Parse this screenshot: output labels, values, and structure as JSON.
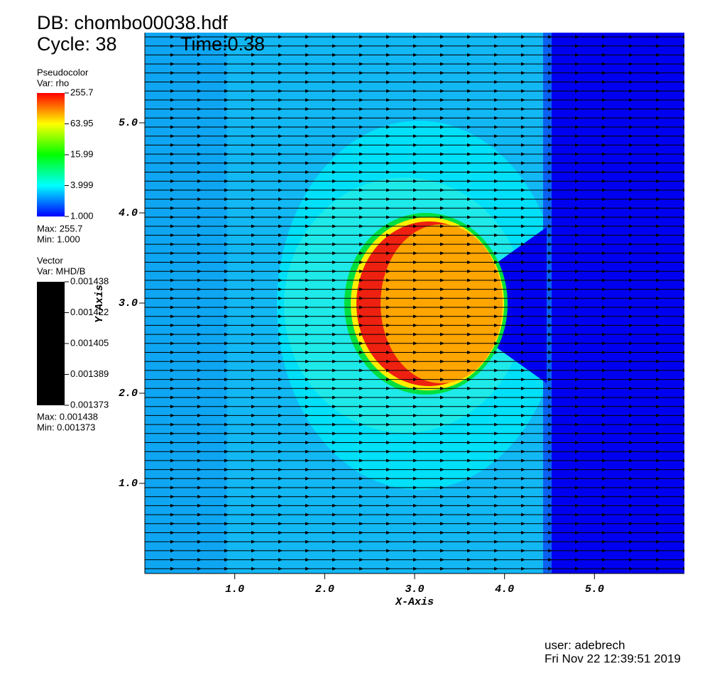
{
  "header": {
    "db": "DB: chombo00038.hdf",
    "cycle": "Cycle: 38",
    "time": "Time:0.38"
  },
  "legend_pseudocolor": {
    "title": "Pseudocolor",
    "var": "Var: rho",
    "ticks": [
      "255.7",
      "63.95",
      "15.99",
      "3.999",
      "1.000"
    ],
    "max": "Max:  255.7",
    "min": "Min:  1.000"
  },
  "legend_vector": {
    "title": "Vector",
    "var": "Var: MHD/B",
    "ticks": [
      "0.001438",
      "0.001422",
      "0.001405",
      "0.001389",
      "0.001373"
    ],
    "max": "Max:  0.001438",
    "min": "Min:  0.001373"
  },
  "chart_data": {
    "type": "field",
    "xlabel": "X-Axis",
    "ylabel": "Y-Axis",
    "xlim": [
      0,
      6
    ],
    "ylim": [
      0,
      6
    ],
    "xticks": [
      {
        "value": 1,
        "label": "1.0"
      },
      {
        "value": 2,
        "label": "2.0"
      },
      {
        "value": 3,
        "label": "3.0"
      },
      {
        "value": 4,
        "label": "4.0"
      },
      {
        "value": 5,
        "label": "5.0"
      }
    ],
    "yticks": [
      {
        "value": 1,
        "label": "1.0"
      },
      {
        "value": 2,
        "label": "2.0"
      },
      {
        "value": 3,
        "label": "3.0"
      },
      {
        "value": 4,
        "label": "4.0"
      },
      {
        "value": 5,
        "label": "5.0"
      }
    ]
  },
  "footer": {
    "user": "user: adebrech",
    "date": "Fri Nov 22 12:39:51 2019"
  }
}
